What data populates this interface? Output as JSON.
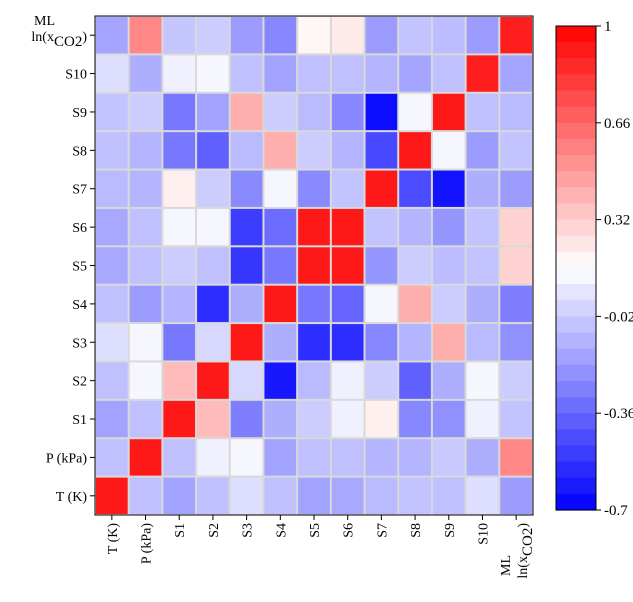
{
  "chart_data": {
    "type": "heatmap",
    "title": "",
    "xlabel": "",
    "ylabel": "",
    "x_labels": [
      {
        "text": "T (K)"
      },
      {
        "text": "P (kPa)"
      },
      {
        "text": "S1"
      },
      {
        "text": "S2"
      },
      {
        "text": "S3"
      },
      {
        "text": "S4"
      },
      {
        "text": "S5"
      },
      {
        "text": "S6"
      },
      {
        "text": "S7"
      },
      {
        "text": "S8"
      },
      {
        "text": "S9"
      },
      {
        "text": "S10"
      },
      {
        "top": "ML",
        "base": "ln(x",
        "sub": "CO2",
        "tail": ")"
      }
    ],
    "y_labels": [
      {
        "top": "ML",
        "base": "ln(x",
        "sub": "CO2",
        "tail": ")"
      },
      {
        "text": "S10"
      },
      {
        "text": "S9"
      },
      {
        "text": "S8"
      },
      {
        "text": "S7"
      },
      {
        "text": "S6"
      },
      {
        "text": "S5"
      },
      {
        "text": "S4"
      },
      {
        "text": "S3"
      },
      {
        "text": "S2"
      },
      {
        "text": "S1"
      },
      {
        "text": "P (kPa)"
      },
      {
        "text": "T (K)"
      }
    ],
    "matrix": [
      [
        -0.15,
        0.55,
        -0.04,
        -0.02,
        -0.18,
        -0.25,
        0.18,
        0.22,
        -0.18,
        -0.05,
        -0.07,
        -0.18,
        0.9
      ],
      [
        0.04,
        -0.12,
        0.1,
        0.12,
        -0.06,
        -0.16,
        -0.06,
        -0.06,
        -0.1,
        -0.15,
        -0.06,
        0.9,
        -0.15
      ],
      [
        -0.05,
        -0.02,
        -0.3,
        -0.16,
        0.42,
        -0.02,
        -0.08,
        -0.25,
        -0.66,
        0.12,
        0.92,
        -0.06,
        -0.08
      ],
      [
        -0.06,
        -0.1,
        -0.3,
        -0.38,
        -0.08,
        0.42,
        -0.02,
        -0.1,
        -0.46,
        0.92,
        0.12,
        -0.18,
        -0.05
      ],
      [
        -0.08,
        -0.1,
        0.2,
        -0.02,
        -0.24,
        0.12,
        -0.24,
        -0.05,
        0.92,
        -0.45,
        -0.64,
        -0.12,
        -0.18
      ],
      [
        -0.14,
        -0.06,
        0.12,
        0.12,
        -0.5,
        -0.34,
        0.92,
        0.92,
        -0.05,
        -0.1,
        -0.2,
        -0.05,
        0.3
      ],
      [
        -0.14,
        -0.06,
        -0.02,
        -0.06,
        -0.52,
        -0.3,
        0.92,
        0.92,
        -0.2,
        -0.02,
        -0.07,
        -0.05,
        0.3
      ],
      [
        -0.06,
        -0.18,
        -0.1,
        -0.55,
        -0.12,
        0.92,
        -0.3,
        -0.36,
        0.12,
        0.42,
        -0.02,
        -0.12,
        -0.28
      ],
      [
        0.04,
        0.12,
        -0.3,
        0.02,
        0.92,
        -0.12,
        -0.55,
        -0.55,
        -0.25,
        -0.1,
        0.42,
        -0.08,
        -0.22
      ],
      [
        -0.06,
        0.12,
        0.38,
        0.92,
        0.02,
        -0.62,
        -0.08,
        0.1,
        -0.02,
        -0.38,
        -0.12,
        0.12,
        -0.02
      ],
      [
        -0.16,
        -0.06,
        0.92,
        0.38,
        -0.28,
        -0.12,
        -0.02,
        0.1,
        0.2,
        -0.25,
        -0.22,
        0.1,
        -0.05
      ],
      [
        -0.06,
        0.92,
        -0.06,
        0.1,
        0.12,
        -0.16,
        -0.06,
        -0.06,
        -0.1,
        -0.1,
        -0.03,
        -0.12,
        0.55
      ],
      [
        0.92,
        -0.06,
        -0.16,
        -0.06,
        0.04,
        -0.06,
        -0.16,
        -0.14,
        -0.08,
        -0.05,
        -0.06,
        0.04,
        -0.18
      ]
    ],
    "colorbar": {
      "min": -0.7,
      "max": 1,
      "tick_labels": [
        "1",
        "0.66",
        "0.32",
        "-0.02",
        "-0.36",
        "-0.7"
      ],
      "tick_values": [
        1,
        0.66,
        0.32,
        -0.02,
        -0.36,
        -0.7
      ],
      "colors": {
        "low": "#0000ff",
        "mid": "#ffffff",
        "high": "#ff0000"
      }
    },
    "grid": true,
    "legend_placement": "right"
  }
}
